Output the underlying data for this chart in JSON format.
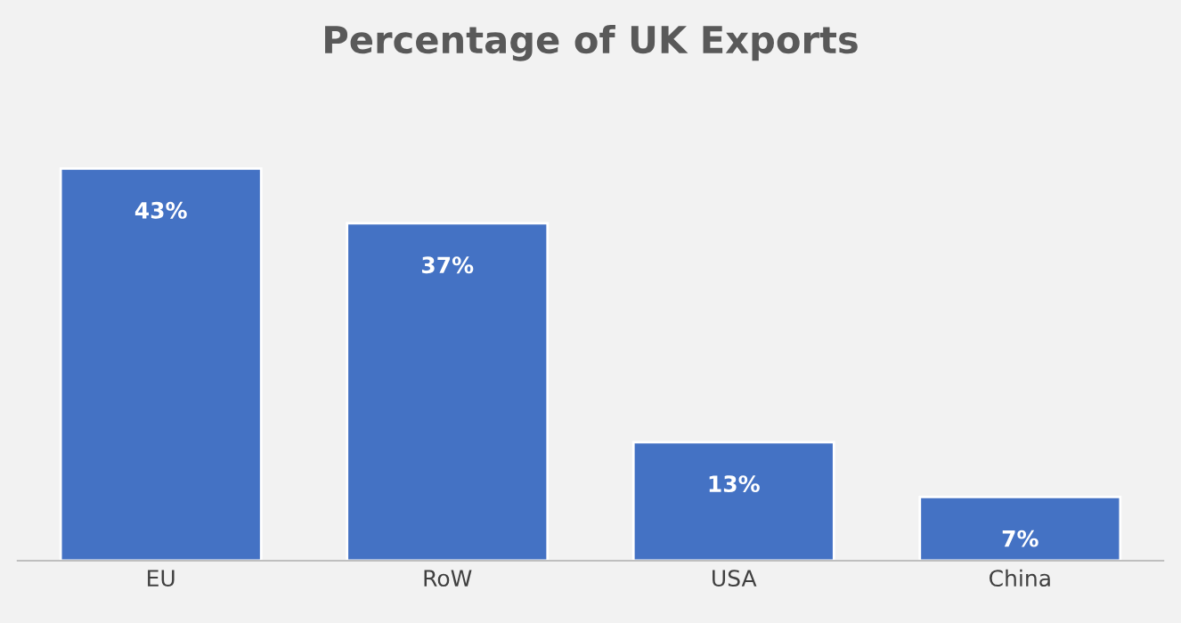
{
  "chart_data": {
    "type": "bar",
    "title": "Percentage of UK Exports",
    "categories": [
      "EU",
      "RoW",
      "USA",
      "China"
    ],
    "values": [
      43,
      37,
      13,
      7
    ],
    "value_labels": [
      "43%",
      "37%",
      "13%",
      "7%"
    ],
    "color": "#4472c4",
    "grid": false,
    "legend": false
  }
}
